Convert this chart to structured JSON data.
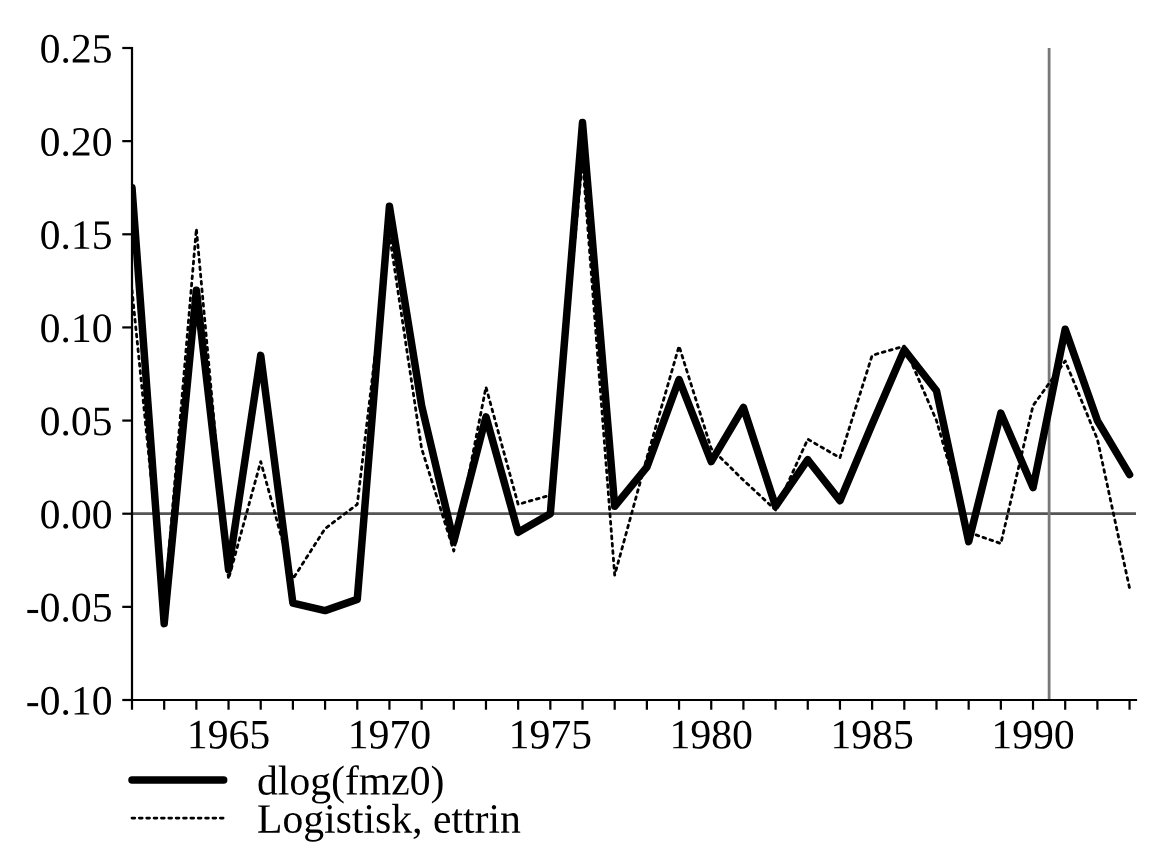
{
  "chart_data": {
    "type": "line",
    "x": [
      1962,
      1963,
      1964,
      1965,
      1966,
      1967,
      1968,
      1969,
      1970,
      1971,
      1972,
      1973,
      1974,
      1975,
      1976,
      1977,
      1978,
      1979,
      1980,
      1981,
      1982,
      1983,
      1984,
      1985,
      1986,
      1987,
      1988,
      1989,
      1990,
      1991,
      1992,
      1993
    ],
    "series": [
      {
        "name": "dlog(fmz0)",
        "color": "#000000",
        "line_style": "solid",
        "values": [
          0.175,
          -0.059,
          0.12,
          -0.03,
          0.085,
          -0.048,
          -0.052,
          -0.046,
          0.165,
          0.058,
          -0.015,
          0.052,
          -0.01,
          0.0,
          0.21,
          0.004,
          0.025,
          0.072,
          0.028,
          0.057,
          0.004,
          0.029,
          0.007,
          0.048,
          0.088,
          0.066,
          -0.015,
          0.054,
          0.014,
          0.099,
          0.05,
          0.021
        ]
      },
      {
        "name": "Logistisk, ettrin",
        "color": "#000000",
        "line_style": "dotted",
        "values": [
          0.12,
          -0.05,
          0.153,
          -0.035,
          0.028,
          -0.035,
          -0.008,
          0.005,
          0.15,
          0.035,
          -0.02,
          0.068,
          0.005,
          0.01,
          0.19,
          -0.033,
          0.03,
          0.09,
          0.035,
          0.018,
          0.002,
          0.04,
          0.03,
          0.085,
          0.09,
          0.05,
          -0.01,
          -0.016,
          0.058,
          0.082,
          0.04,
          -0.04
        ]
      }
    ],
    "xlim": [
      1962,
      1993.2
    ],
    "xticks": [
      {
        "value": 1962,
        "label": null
      },
      {
        "value": 1963,
        "label": null
      },
      {
        "value": 1964,
        "label": null
      },
      1965,
      {
        "value": 1966,
        "label": null
      },
      {
        "value": 1967,
        "label": null
      },
      {
        "value": 1968,
        "label": null
      },
      {
        "value": 1969,
        "label": null
      },
      1970,
      {
        "value": 1971,
        "label": null
      },
      {
        "value": 1972,
        "label": null
      },
      {
        "value": 1973,
        "label": null
      },
      {
        "value": 1974,
        "label": null
      },
      1975,
      {
        "value": 1976,
        "label": null
      },
      {
        "value": 1977,
        "label": null
      },
      {
        "value": 1978,
        "label": null
      },
      {
        "value": 1979,
        "label": null
      },
      1980,
      {
        "value": 1981,
        "label": null
      },
      {
        "value": 1982,
        "label": null
      },
      {
        "value": 1983,
        "label": null
      },
      {
        "value": 1984,
        "label": null
      },
      1985,
      {
        "value": 1986,
        "label": null
      },
      {
        "value": 1987,
        "label": null
      },
      {
        "value": 1988,
        "label": null
      },
      {
        "value": 1989,
        "label": null
      },
      1990,
      {
        "value": 1991,
        "label": null
      },
      {
        "value": 1992,
        "label": null
      },
      {
        "value": 1993,
        "label": null
      }
    ],
    "ylim": [
      -0.1,
      0.25
    ],
    "yticks": [
      {
        "value": -0.1,
        "label": "-0.10"
      },
      {
        "value": -0.05,
        "label": "-0.05"
      },
      {
        "value": 0,
        "label": "0.00"
      },
      {
        "value": 0.05,
        "label": "0.05"
      },
      {
        "value": 0.1,
        "label": "0.10"
      },
      {
        "value": 0.15,
        "label": "0.15"
      },
      {
        "value": 0.2,
        "label": "0.20"
      },
      {
        "value": 0.25,
        "label": "0.25"
      }
    ],
    "ref_lines": [
      {
        "axis": "y",
        "value": 0,
        "color": "#555555"
      },
      {
        "axis": "x",
        "value": 1990.5,
        "color": "#777777"
      }
    ],
    "grid": false,
    "legend": "bottom left"
  }
}
